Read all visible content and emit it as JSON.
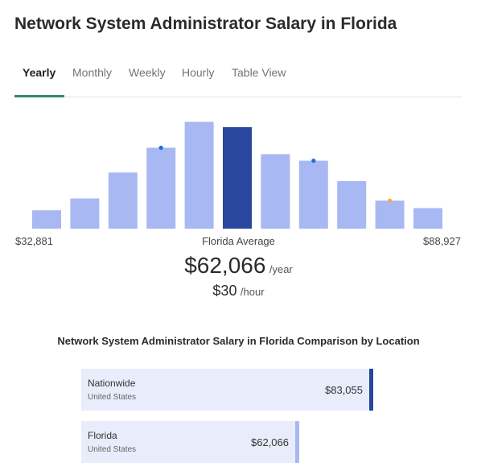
{
  "page": {
    "title": "Network System Administrator Salary in Florida"
  },
  "tabs": [
    {
      "label": "Yearly",
      "active": true
    },
    {
      "label": "Monthly",
      "active": false
    },
    {
      "label": "Weekly",
      "active": false
    },
    {
      "label": "Hourly",
      "active": false
    },
    {
      "label": "Table View",
      "active": false
    }
  ],
  "colors": {
    "bar": "#a8b8f2",
    "bar_highlight": "#2a479e",
    "tab_accent": "#2e8a72",
    "marker_blue": "#1a6fe0",
    "marker_orange": "#f4a94a",
    "comparison_bg": "#e9ecfa",
    "nationwide_cap": "#2a479e",
    "florida_cap": "#a8b8f2"
  },
  "chart_data": {
    "type": "bar",
    "values": [
      17,
      28,
      52,
      75,
      99,
      94,
      69,
      63,
      44,
      26,
      19
    ],
    "highlight_index": 5,
    "markers": [
      {
        "bar_index": 3,
        "color": "blue"
      },
      {
        "bar_index": 7,
        "color": "blue"
      },
      {
        "bar_index": 9,
        "color": "orange"
      }
    ],
    "range_min": "$32,881",
    "range_max": "$88,927",
    "center_label": "Florida Average"
  },
  "average": {
    "yearly": "$62,066",
    "yearly_unit": "/year",
    "hourly": "$30",
    "hourly_unit": "/hour"
  },
  "comparison": {
    "title": "Network System Administrator Salary in Florida Comparison by Location",
    "rows": [
      {
        "location": "Nationwide",
        "country": "United States",
        "value": "$83,055",
        "amount": 83055
      },
      {
        "location": "Florida",
        "country": "United States",
        "value": "$62,066",
        "amount": 62066
      }
    ]
  }
}
